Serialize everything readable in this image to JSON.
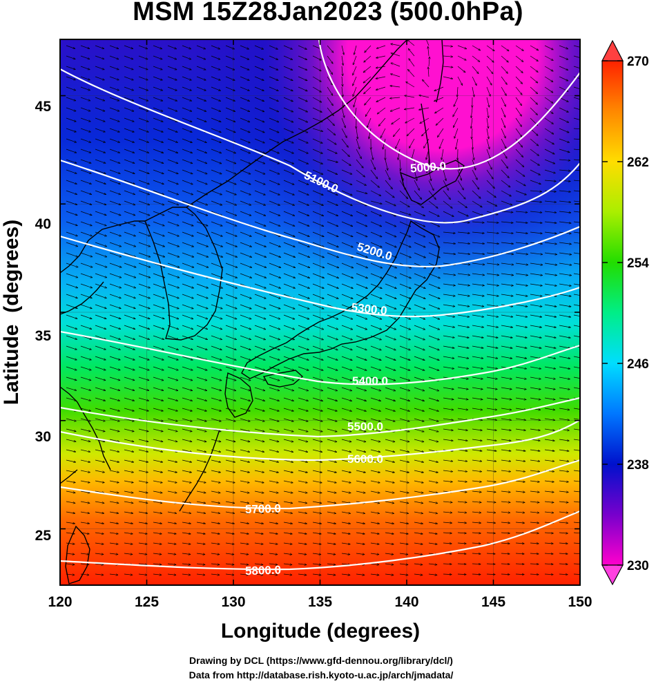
{
  "title": "MSM 15Z28Jan2023 (500.0hPa)",
  "map": {
    "xlabel": "Longitude (degrees)",
    "ylabel": "Latitude  (degrees)",
    "xlim": [
      120,
      150
    ],
    "ylim": [
      22.4,
      47.6
    ],
    "xticks": [
      "120",
      "125",
      "130",
      "135",
      "140",
      "145",
      "150"
    ],
    "yticks": [
      "25",
      "30",
      "35",
      "40",
      "45"
    ],
    "grid": true
  },
  "colorbar": {
    "range": [
      230,
      270
    ],
    "ticks": [
      "230",
      "238",
      "246",
      "254",
      "262",
      "270"
    ],
    "palette": [
      "#ff00cc",
      "#7700cc",
      "#0011cc",
      "#0077ff",
      "#00ddff",
      "#00ee88",
      "#22dd00",
      "#aaee00",
      "#ffdd00",
      "#ff8800",
      "#ff2200"
    ]
  },
  "contours": [
    {
      "label": "5000.0"
    },
    {
      "label": "5100.0"
    },
    {
      "label": "5200.0"
    },
    {
      "label": "5300.0"
    },
    {
      "label": "5400.0"
    },
    {
      "label": "5500.0"
    },
    {
      "label": "5600.0"
    },
    {
      "label": "5700.0"
    },
    {
      "label": "5800.0"
    }
  ],
  "credits": [
    "Drawing by DCL (https://www.gfd-dennou.org/library/dcl/)",
    "Data from http://database.rish.kyoto-u.ac.jp/arch/jmadata/"
  ]
}
